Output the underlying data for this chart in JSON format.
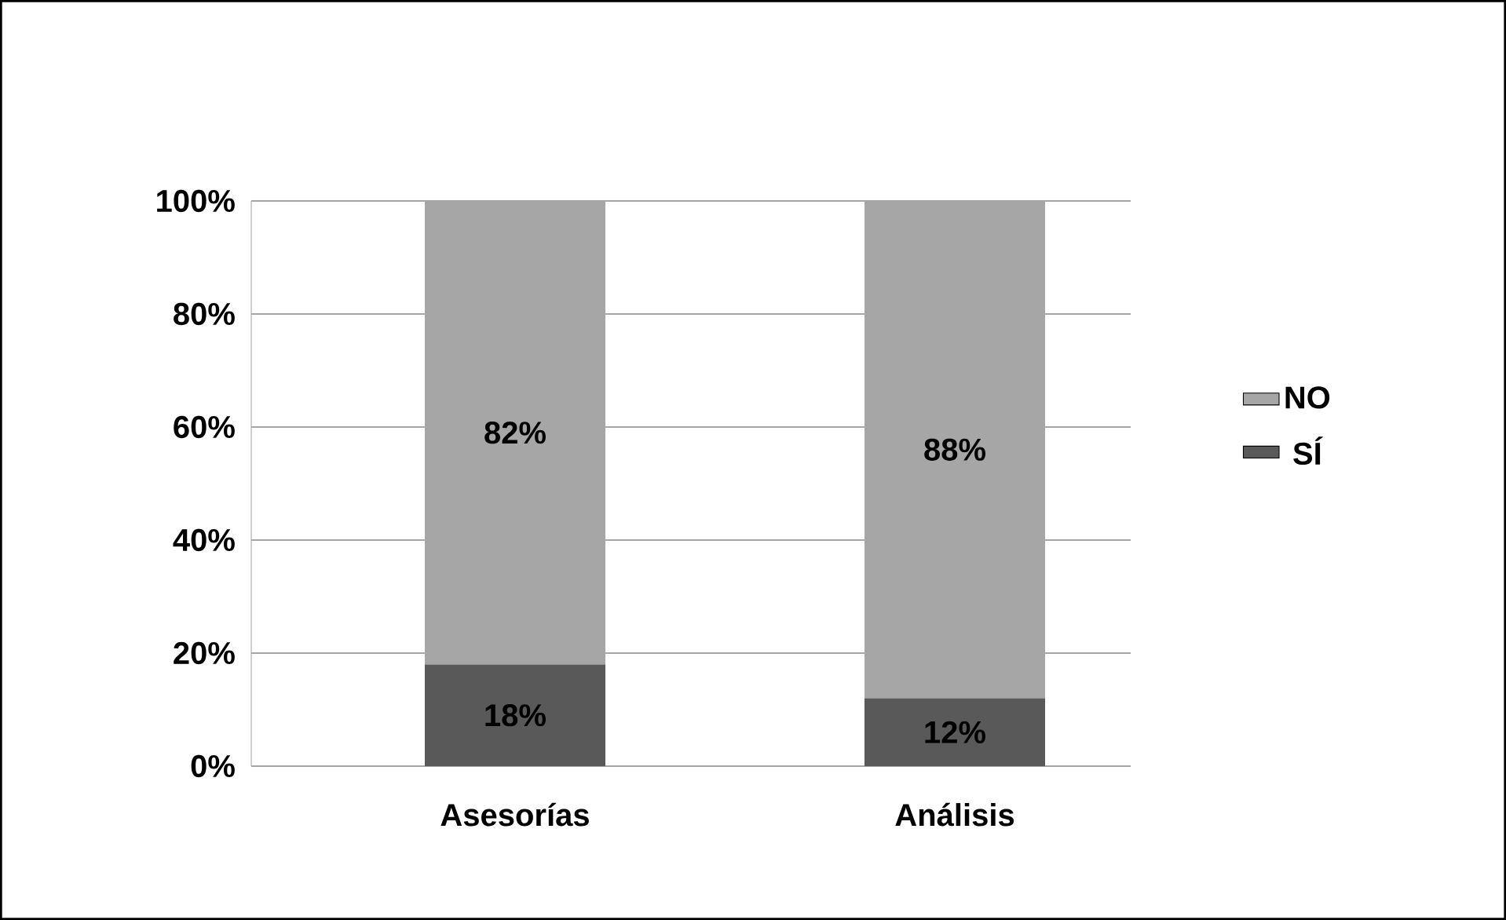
{
  "chart_data": {
    "type": "bar",
    "stacked": true,
    "categories": [
      "Asesorías",
      "Análisis"
    ],
    "series": [
      {
        "name": "SÍ",
        "color": "#595959",
        "values": [
          18,
          12
        ],
        "value_labels": [
          "18%",
          "12%"
        ]
      },
      {
        "name": "NO",
        "color": "#a6a6a6",
        "values": [
          82,
          88
        ],
        "value_labels": [
          "82%",
          "88%"
        ]
      }
    ],
    "ylim": [
      0,
      100
    ],
    "yticks": [
      {
        "value": 0,
        "label": "0%"
      },
      {
        "value": 20,
        "label": "20%"
      },
      {
        "value": 40,
        "label": "40%"
      },
      {
        "value": 60,
        "label": "60%"
      },
      {
        "value": 80,
        "label": "80%"
      },
      {
        "value": 100,
        "label": "100%"
      }
    ],
    "grid": "y",
    "legend": "right"
  }
}
